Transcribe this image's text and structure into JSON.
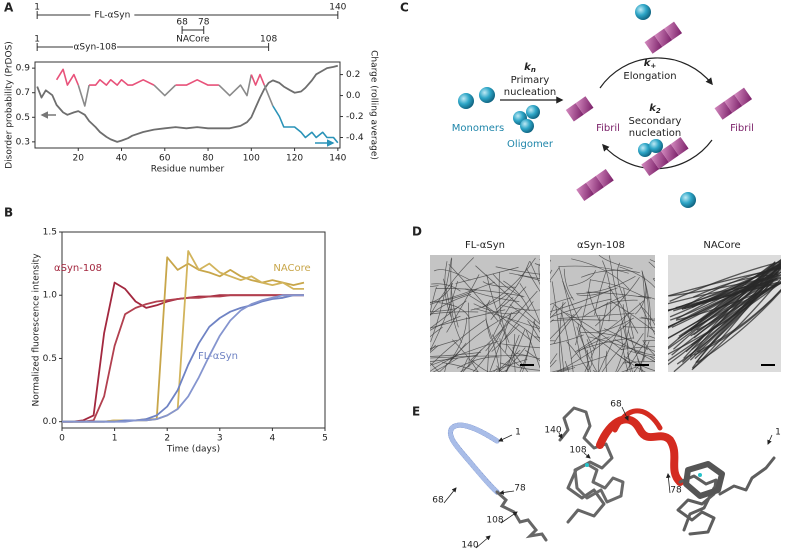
{
  "panel_labels": [
    "A",
    "B",
    "C",
    "D",
    "E"
  ],
  "chart_data": [
    {
      "type": "line",
      "xlabel": "Residue number",
      "ylabel": "Disorder probability (PrDOS)",
      "y2label": "Charge (rolling average)",
      "constructs": [
        {
          "name": "FL-αSyn",
          "start": 1,
          "end": 140
        },
        {
          "name": "NACore",
          "start": 68,
          "end": 78
        },
        {
          "name": "αSyn-108",
          "start": 1,
          "end": 108
        }
      ],
      "xlim": [
        0,
        141
      ],
      "xticks": [
        20,
        40,
        60,
        80,
        100,
        120,
        140
      ],
      "ylim": [
        0.25,
        0.95
      ],
      "yticks": [
        0.3,
        0.5,
        0.7,
        0.9
      ],
      "y2lim": [
        -0.5,
        0.32
      ],
      "y2ticks": [
        0.2,
        {
          "value": 0,
          "label": "0.0"
        },
        -0.2,
        -0.4
      ],
      "x": [
        1,
        3,
        5,
        8,
        10,
        13,
        15,
        18,
        20,
        23,
        25,
        28,
        30,
        33,
        35,
        38,
        40,
        43,
        45,
        50,
        55,
        60,
        65,
        70,
        75,
        80,
        85,
        90,
        95,
        98,
        100,
        102,
        104,
        106,
        108,
        110,
        113,
        115,
        118,
        120,
        123,
        125,
        128,
        130,
        133,
        135,
        138,
        140
      ],
      "series": [
        {
          "color": "#6e6e6e",
          "values": [
            0.75,
            0.66,
            0.72,
            0.68,
            0.6,
            0.54,
            0.52,
            0.54,
            0.55,
            0.52,
            0.47,
            0.42,
            0.38,
            0.34,
            0.32,
            0.3,
            0.31,
            0.33,
            0.35,
            0.38,
            0.4,
            0.41,
            0.42,
            0.41,
            0.42,
            0.41,
            0.41,
            0.41,
            0.43,
            0.46,
            0.5,
            0.58,
            0.66,
            0.73,
            0.78,
            0.8,
            0.78,
            0.75,
            0.72,
            0.7,
            0.71,
            0.74,
            0.8,
            0.85,
            0.88,
            0.9,
            0.91,
            0.92
          ]
        },
        {
          "axis": "y2",
          "color": "#8a8a8a",
          "positive_color": "#e8527a",
          "negative_color": "#2a93b8",
          "values": [
            null,
            null,
            null,
            null,
            0.15,
            0.25,
            0.1,
            0.2,
            0.1,
            -0.1,
            0.1,
            0.1,
            0.15,
            0.1,
            0.15,
            0.1,
            0.15,
            0.1,
            0.1,
            0.15,
            0.1,
            0,
            0.1,
            0.1,
            0.15,
            0.1,
            0.1,
            0,
            0.1,
            0,
            0.2,
            0.1,
            0.2,
            0.1,
            0.0,
            -0.1,
            -0.2,
            -0.3,
            -0.3,
            -0.3,
            -0.35,
            -0.4,
            -0.35,
            -0.4,
            -0.35,
            -0.4,
            -0.4,
            -0.45
          ]
        }
      ]
    },
    {
      "type": "line",
      "xlabel": "Time (days)",
      "ylabel": "Normalized fluorescence intensity",
      "xlim": [
        0,
        5
      ],
      "xticks": [
        0,
        1,
        2,
        3,
        4,
        5
      ],
      "ylim": [
        -0.05,
        1.5
      ],
      "yticks": [
        {
          "value": 0,
          "label": "0.0"
        },
        0.5,
        {
          "value": 1,
          "label": "1.0"
        },
        1.5
      ],
      "x": [
        0,
        0.2,
        0.4,
        0.6,
        0.8,
        1.0,
        1.2,
        1.4,
        1.6,
        1.8,
        2.0,
        2.2,
        2.4,
        2.6,
        2.8,
        3.0,
        3.2,
        3.4,
        3.6,
        3.8,
        4.0,
        4.2,
        4.4,
        4.6
      ],
      "annotations": [
        {
          "text": "αSyn-108",
          "color": "#a3283f"
        },
        {
          "text": "NACore",
          "color": "#c8a64a"
        },
        {
          "text": "FL-αSyn",
          "color": "#6f83c4"
        }
      ],
      "series": [
        {
          "color": "#a3283f",
          "values": [
            0,
            0,
            0.01,
            0.05,
            0.7,
            1.1,
            1.05,
            0.95,
            0.9,
            0.92,
            0.95,
            0.97,
            0.98,
            0.99,
            0.99,
            1.0,
            1.0,
            1.0,
            1.0,
            1.0,
            1.0,
            1.0,
            1.0,
            1.0
          ]
        },
        {
          "color": "#b2404f",
          "values": [
            0,
            0,
            0,
            0.01,
            0.2,
            0.6,
            0.85,
            0.9,
            0.93,
            0.95,
            0.96,
            0.97,
            0.98,
            0.98,
            0.99,
            0.99,
            1.0,
            1.0,
            1.0,
            1.0,
            1.0,
            1.0,
            1.0,
            1.0
          ]
        },
        {
          "color": "#c8a64a",
          "values": [
            0,
            0,
            0,
            0,
            0,
            0.01,
            0.01,
            0.01,
            0.01,
            0.02,
            1.3,
            1.2,
            1.25,
            1.2,
            1.18,
            1.15,
            1.2,
            1.15,
            1.12,
            1.1,
            1.12,
            1.1,
            1.08,
            1.1
          ]
        },
        {
          "color": "#d2b45c",
          "values": [
            0,
            0,
            0,
            0,
            0,
            0.01,
            0.01,
            0.01,
            0.02,
            0.02,
            0.05,
            0.1,
            1.35,
            1.2,
            1.25,
            1.18,
            1.15,
            1.12,
            1.15,
            1.1,
            1.08,
            1.1,
            1.05,
            1.05
          ]
        },
        {
          "color": "#6f83c4",
          "values": [
            0,
            0,
            0,
            0,
            0,
            0,
            0.01,
            0.01,
            0.02,
            0.05,
            0.12,
            0.25,
            0.45,
            0.62,
            0.75,
            0.82,
            0.87,
            0.9,
            0.92,
            0.95,
            0.97,
            0.98,
            1.0,
            1.0
          ]
        },
        {
          "color": "#8595cf",
          "values": [
            0,
            0,
            0,
            0,
            0,
            0,
            0,
            0.01,
            0.01,
            0.02,
            0.05,
            0.1,
            0.2,
            0.35,
            0.52,
            0.68,
            0.8,
            0.88,
            0.93,
            0.96,
            0.98,
            1.0,
            1.0,
            1.0
          ]
        }
      ]
    }
  ],
  "diagram": {
    "monomers": "Monomers",
    "oligomer": "Oligomer",
    "primary": {
      "symbol": "k",
      "subscript": "n",
      "line1": "Primary",
      "line2": "nucleation"
    },
    "elongation": {
      "symbol": "k",
      "subscript": "+",
      "label": "Elongation"
    },
    "secondary": {
      "symbol": "k",
      "subscript": "2",
      "line1": "Secondary",
      "line2": "nucleation"
    },
    "fibril_left": "Fibril",
    "fibril_right": "Fibril"
  },
  "micrographs": {
    "titles": [
      "FL-αSyn",
      "αSyn-108",
      "NACore"
    ]
  },
  "structures": {
    "left_labels": [
      "1",
      "68",
      "78",
      "108",
      "140"
    ],
    "right_labels": [
      "140",
      "108",
      "68",
      "78",
      "1"
    ]
  }
}
